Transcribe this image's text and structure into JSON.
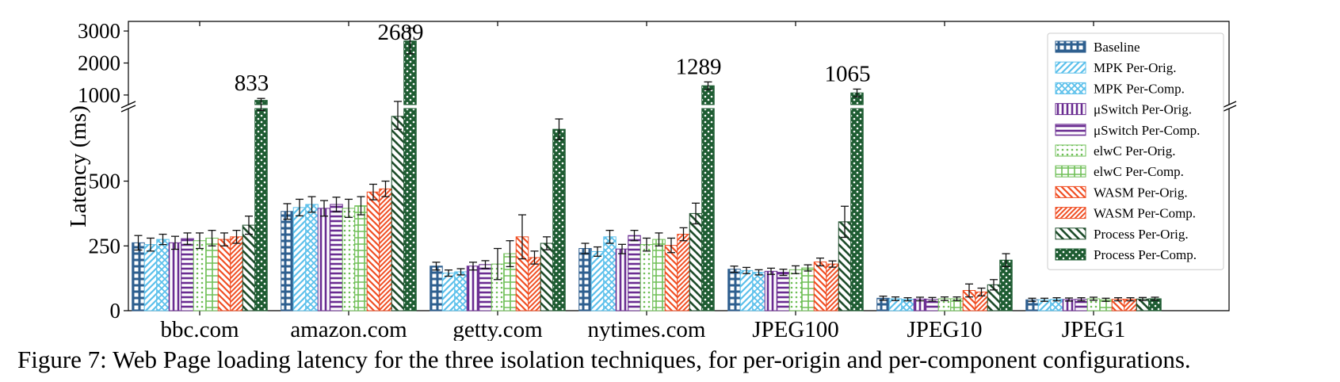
{
  "figure": {
    "caption": "Figure 7: Web Page loading latency for the three isolation techniques, for per-origin and per-component configurations."
  },
  "chart_data": {
    "type": "bar",
    "title": "",
    "xlabel": "",
    "ylabel": "Latency (ms)",
    "broken_y_axis": true,
    "lower_ylim": [
      0,
      780
    ],
    "upper_ylim": [
      700,
      3300
    ],
    "lower_yticks": [
      0,
      250,
      500
    ],
    "upper_yticks": [
      1000,
      2000,
      3000
    ],
    "grid": false,
    "legend_position": "top-right",
    "categories": [
      "bbc.com",
      "amazon.com",
      "getty.com",
      "nytimes.com",
      "JPEG100",
      "JPEG10",
      "JPEG1"
    ],
    "series": [
      {
        "name": "Baseline",
        "color": "#2e5f8f",
        "pattern": "grid",
        "values": [
          262,
          383,
          172,
          240,
          160,
          48,
          42
        ],
        "errors": [
          28,
          30,
          15,
          20,
          12,
          8,
          6
        ]
      },
      {
        "name": "MPK Per-Orig.",
        "color": "#5bc0eb",
        "pattern": "diag",
        "values": [
          255,
          398,
          145,
          228,
          155,
          46,
          42
        ],
        "errors": [
          25,
          32,
          12,
          18,
          12,
          7,
          6
        ]
      },
      {
        "name": "MPK Per-Comp.",
        "color": "#5bc0eb",
        "pattern": "cross",
        "values": [
          275,
          410,
          150,
          285,
          148,
          44,
          44
        ],
        "errors": [
          20,
          30,
          12,
          25,
          10,
          6,
          6
        ]
      },
      {
        "name": "μSwitch Per-Orig.",
        "color": "#6a2c91",
        "pattern": "vert",
        "values": [
          262,
          395,
          172,
          238,
          152,
          45,
          43
        ],
        "errors": [
          25,
          30,
          15,
          18,
          12,
          7,
          6
        ]
      },
      {
        "name": "μSwitch Per-Comp.",
        "color": "#6a2c91",
        "pattern": "horiz",
        "values": [
          278,
          410,
          178,
          290,
          148,
          44,
          44
        ],
        "errors": [
          22,
          28,
          15,
          20,
          12,
          7,
          6
        ]
      },
      {
        "name": "elwC Per-Orig.",
        "color": "#6fbf57",
        "pattern": "dots",
        "values": [
          270,
          395,
          180,
          255,
          158,
          46,
          46
        ],
        "errors": [
          30,
          35,
          60,
          25,
          15,
          7,
          6
        ]
      },
      {
        "name": "elwC Per-Comp.",
        "color": "#6fbf57",
        "pattern": "hgrid",
        "values": [
          280,
          405,
          220,
          275,
          165,
          46,
          42
        ],
        "errors": [
          30,
          35,
          50,
          25,
          12,
          7,
          6
        ]
      },
      {
        "name": "WASM Per-Orig.",
        "color": "#f04e23",
        "pattern": "back",
        "values": [
          275,
          458,
          285,
          252,
          188,
          78,
          44
        ],
        "errors": [
          25,
          30,
          85,
          28,
          15,
          25,
          6
        ]
      },
      {
        "name": "WASM Per-Comp.",
        "color": "#f04e23",
        "pattern": "diagdense",
        "values": [
          285,
          470,
          205,
          295,
          180,
          72,
          44
        ],
        "errors": [
          25,
          30,
          25,
          25,
          12,
          15,
          6
        ]
      },
      {
        "name": "Process Per-Orig.",
        "color": "#1e4d2b",
        "pattern": "backwide",
        "values": [
          330,
          750,
          260,
          375,
          343,
          100,
          45
        ],
        "errors": [
          35,
          50,
          25,
          40,
          60,
          20,
          6
        ]
      },
      {
        "name": "Process Per-Comp.",
        "color": "#1e5c32",
        "pattern": "check",
        "values": [
          833,
          2689,
          700,
          1289,
          1065,
          195,
          46
        ],
        "errors": [
          60,
          400,
          40,
          120,
          120,
          25,
          6
        ]
      }
    ],
    "annotations": [
      {
        "category": "bbc.com",
        "text": "833"
      },
      {
        "category": "amazon.com",
        "text": "2689"
      },
      {
        "category": "nytimes.com",
        "text": "1289"
      },
      {
        "category": "JPEG100",
        "text": "1065"
      }
    ]
  }
}
